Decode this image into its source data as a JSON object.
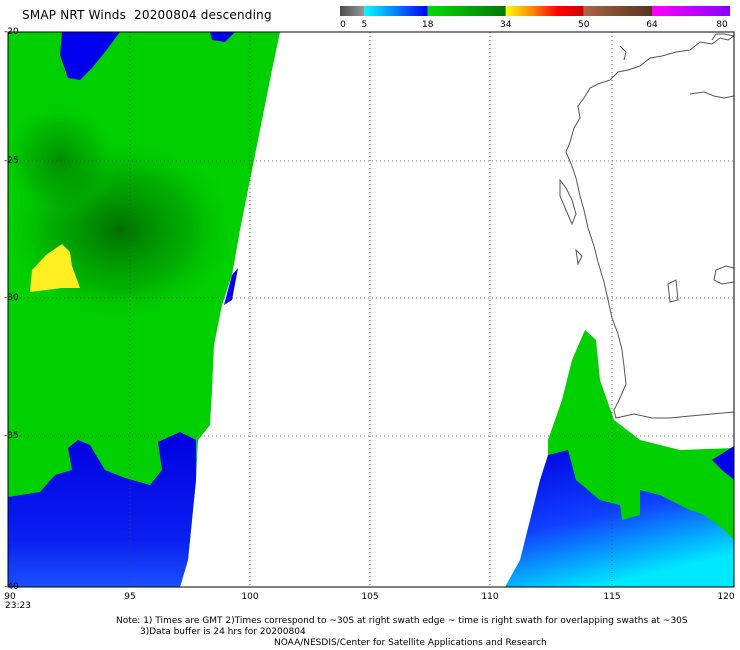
{
  "title": "SMAP NRT Winds  20200804 descending",
  "colorbar": {
    "labels": [
      "0",
      "5",
      "18",
      "34",
      "50",
      "64",
      "80"
    ],
    "segments": [
      {
        "from": 0,
        "to": 5,
        "colors": [
          "#4d4d4d",
          "#9a9a9a"
        ]
      },
      {
        "from": 5,
        "to": 18,
        "colors": [
          "#00ffff",
          "#0000ff"
        ]
      },
      {
        "from": 18,
        "to": 34,
        "colors": [
          "#00dd00",
          "#007700"
        ]
      },
      {
        "from": 34,
        "to": 50,
        "colors": [
          "#ffff00",
          "#ff8800",
          "#ff0000",
          "#cc0000"
        ]
      },
      {
        "from": 50,
        "to": 64,
        "colors": [
          "#aa6644",
          "#553322"
        ]
      },
      {
        "from": 64,
        "to": 80,
        "colors": [
          "#ff00ff",
          "#8800ff"
        ]
      }
    ]
  },
  "map": {
    "lon_range": [
      90,
      120
    ],
    "lat_range": [
      -20,
      -40
    ],
    "x_ticks": [
      "90",
      "95",
      "100",
      "105",
      "110",
      "115",
      "120"
    ],
    "y_ticks": [
      "-20",
      "-25",
      "-30",
      "-35",
      "-40"
    ]
  },
  "timestamp": "23:23",
  "notes": {
    "line1": "Note: 1) Times are GMT 2)Times correspond to ~30S at right swath edge ~ time is right swath for overlapping swaths at ~30S",
    "line2": "3)Data buffer is 24 hrs for 20200804",
    "line3": "NOAA/NESDIS/Center for Satellite Applications and Research"
  },
  "colors": {
    "green": "#00d000",
    "dark_green": "#007a00",
    "blue": "#0000ee",
    "cyan": "#00e8ff",
    "yellow": "#ffee22",
    "coast": "#555555"
  }
}
